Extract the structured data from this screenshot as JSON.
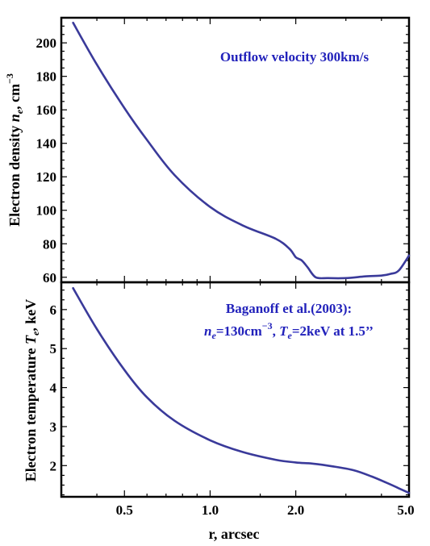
{
  "chart_data": [
    {
      "type": "line",
      "panel": "top",
      "xscale": "log",
      "xlim": [
        0.3,
        5.0
      ],
      "ylim": [
        57,
        215
      ],
      "ylabel_text": "Electron density  ",
      "ylabel_var": "n",
      "ylabel_sub": "e",
      "ylabel_unit": ", cm",
      "ylabel_sup": "−3",
      "yticks": [
        60,
        80,
        100,
        120,
        140,
        160,
        180,
        200
      ],
      "ytick_labels": [
        "60",
        "80",
        "100",
        "120",
        "140",
        "160",
        "180",
        "200"
      ],
      "annotation": "Outflow velocity 300km/s",
      "series": [
        {
          "color": "#3a3a9a",
          "x": [
            0.33,
            0.4,
            0.5,
            0.6,
            0.75,
            1.0,
            1.3,
            1.7,
            1.9,
            2.0,
            2.1,
            2.2,
            2.35,
            2.6,
            3.0,
            3.5,
            4.0,
            4.3,
            4.6,
            5.0
          ],
          "y": [
            212,
            187,
            161,
            142,
            121,
            102,
            91,
            83,
            77,
            72,
            70,
            66,
            60,
            59.5,
            59.5,
            60.5,
            61,
            62,
            64,
            73
          ]
        }
      ]
    },
    {
      "type": "line",
      "panel": "bottom",
      "xscale": "log",
      "xlim": [
        0.3,
        5.0
      ],
      "ylim": [
        1.2,
        6.7
      ],
      "ylabel_text": "Electron temperature ",
      "ylabel_var": "T",
      "ylabel_sub": "e",
      "ylabel_unit": ", keV",
      "yticks": [
        2,
        3,
        4,
        5,
        6
      ],
      "ytick_labels": [
        "2",
        "3",
        "4",
        "5",
        "6"
      ],
      "xticks": [
        0.5,
        1.0,
        2.0,
        5.0
      ],
      "xtick_labels": [
        "0.5",
        "1.0",
        "2.0",
        "5.0"
      ],
      "xlabel": "r, arcsec",
      "annotation_line1": "Baganoff et al.(2003):",
      "annotation_line2": {
        "n": "n",
        "n_sub": "e",
        "n_val": "=130cm",
        "n_sup": "−3",
        "sep": ", ",
        "t": "T",
        "t_sub": "e",
        "t_val": "=2keV  at 1.5’’"
      },
      "series": [
        {
          "color": "#3a3a9a",
          "x": [
            0.33,
            0.4,
            0.5,
            0.6,
            0.75,
            1.0,
            1.3,
            1.7,
            2.0,
            2.3,
            2.7,
            3.2,
            3.7,
            4.2,
            4.6,
            5.0
          ],
          "y": [
            6.55,
            5.5,
            4.45,
            3.75,
            3.15,
            2.65,
            2.35,
            2.15,
            2.08,
            2.05,
            1.98,
            1.88,
            1.72,
            1.55,
            1.42,
            1.3
          ]
        }
      ]
    }
  ]
}
